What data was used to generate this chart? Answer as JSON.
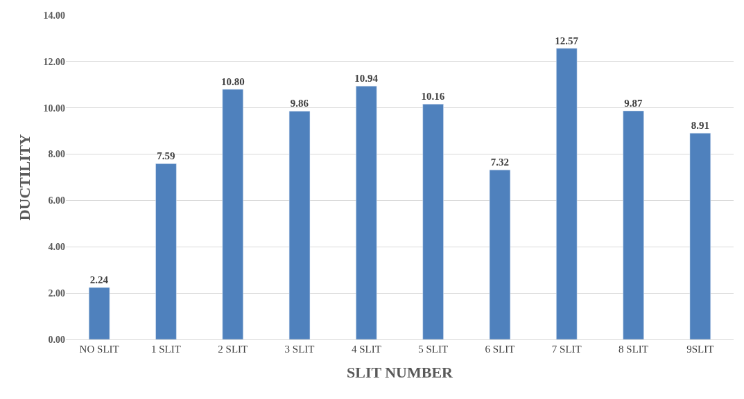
{
  "chart_data": {
    "type": "bar",
    "xlabel": "SLIT NUMBER",
    "ylabel": "DUCTILITY",
    "categories": [
      "NO SLIT",
      "1 SLIT",
      "2 SLIT",
      "3 SLIT",
      "4 SLIT",
      "5 SLIT",
      "6 SLIT",
      "7 SLIT",
      "8 SLIT",
      "9SLIT"
    ],
    "values": [
      2.24,
      7.59,
      10.8,
      9.86,
      10.94,
      10.16,
      7.32,
      12.57,
      9.87,
      8.91
    ],
    "value_labels": [
      "2.24",
      "7.59",
      "10.80",
      "9.86",
      "10.94",
      "10.16",
      "7.32",
      "12.57",
      "9.87",
      "8.91"
    ],
    "color": "#4f81bd",
    "ylim": [
      0,
      14
    ],
    "yticks": [
      {
        "value": 0,
        "label": "0.00"
      },
      {
        "value": 2,
        "label": "2.00"
      },
      {
        "value": 4,
        "label": "4.00"
      },
      {
        "value": 6,
        "label": "6.00"
      },
      {
        "value": 8,
        "label": "8.00"
      },
      {
        "value": 10,
        "label": "10.00"
      },
      {
        "value": 12,
        "label": "12.00"
      },
      {
        "value": 14,
        "label": "14.00"
      }
    ],
    "grid": "y"
  }
}
